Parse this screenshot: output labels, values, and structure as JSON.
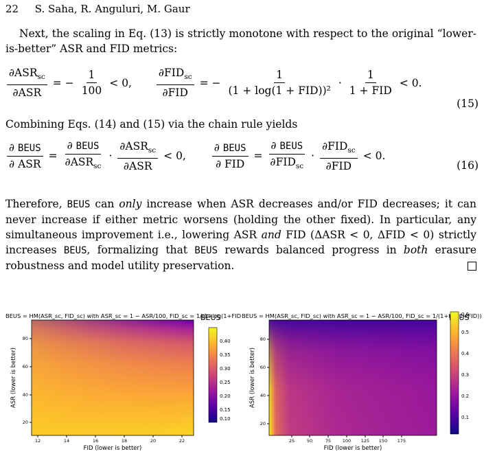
{
  "header": {
    "page_number": "22",
    "authors": "S. Saha, R. Anguluri, M. Gaur"
  },
  "para1": "Next, the scaling in Eq. (13) is strictly monotone with respect to the original “lower-is-better” ASR and FID metrics:",
  "eq15": {
    "lhs1_num": "∂ASR",
    "lhs1_sub": "sc",
    "lhs1_den": "∂ASR",
    "rhs1_num": "1",
    "rhs1_den": "100",
    "rhs1_tail": "< 0,",
    "lhs2_num": "∂FID",
    "lhs2_sub": "sc",
    "lhs2_den": "∂FID",
    "rhs2a_num": "1",
    "rhs2a_den": "(1 + log(1 + FID))²",
    "rhs2b_num": "1",
    "rhs2b_den": "1 + FID",
    "rhs2_tail": "< 0.",
    "label": "(15)"
  },
  "para2": "Combining Eqs. (14) and (15) via the chain rule yields",
  "eq16": {
    "beus": "BEUS",
    "asr": "ASR",
    "fid": "FID",
    "sc": "sc",
    "tail1": "< 0,",
    "tail2": "< 0.",
    "label": "(16)"
  },
  "para3": {
    "t1": "Therefore, ",
    "beus": "BEUS",
    "t2": " can ",
    "only": "only",
    "t3": " increase when ASR decreases and/or FID decreases; it can never increase if either metric worsens (holding the other fixed). In particular, any simultaneous improvement i.e., lowering ASR ",
    "and": "and",
    "t4": " FID (ΔASR < 0, ΔFID < 0) strictly increases ",
    "t5": ", formalizing that ",
    "t6": " rewards balanced progress in ",
    "both": "both",
    "t7": " erasure robustness and model utility preservation."
  },
  "figure": {
    "left": {
      "title": "BEUS = HM(ASR_sc, FID_sc)  with  ASR_sc = 1 − ASR/100,  FID_sc = 1/(1+log(1+FID))",
      "xlabel": "FID (lower is better)",
      "ylabel": "ASR (lower is better)",
      "colorbar_label": "BEUS",
      "xticks": [
        "12",
        "14",
        "16",
        "18",
        "20",
        "22"
      ],
      "yticks": [
        "20",
        "40",
        "60",
        "80"
      ],
      "cbticks": [
        "0.40",
        "0.35",
        "0.30",
        "0.25",
        "0.20",
        "0.15",
        "0.10"
      ]
    },
    "right": {
      "title": "BEUS = HM(ASR_sc, FID_sc)  with  ASR_sc = 1 − ASR/100,  FID_sc = 1/(1+log(1+FID))",
      "xlabel": "FID (lower is better)",
      "ylabel": "ASR (lower is better)",
      "colorbar_label": "BEUS",
      "xticks": [
        "25",
        "50",
        "75",
        "100",
        "125",
        "150",
        "175"
      ],
      "yticks": [
        "20",
        "40",
        "60",
        "80"
      ],
      "cbticks": [
        "0.6",
        "0.5",
        "0.4",
        "0.3",
        "0.2",
        "0.1"
      ]
    },
    "colormap": [
      "#0d0887",
      "#5c01a6",
      "#9c179e",
      "#cc4778",
      "#ed7953",
      "#fdb42f",
      "#f0f921"
    ]
  }
}
